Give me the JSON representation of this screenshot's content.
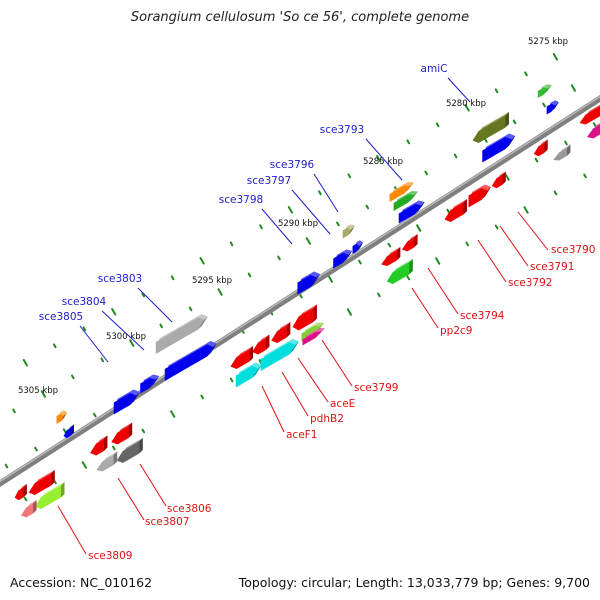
{
  "title": "Sorangium cellulosum 'So ce 56', complete genome",
  "footer": {
    "accession": "Accession: NC_010162",
    "summary": "Topology: circular; Length: 13,033,779 bp; Genes: 9,700"
  },
  "colors": {
    "backbone": "#7f7f7f",
    "upper_label": "#1c1cc8",
    "lower_label": "#dd1111",
    "tick": "#1f8a1f"
  },
  "position_markers": [
    "5275 kbp",
    "5280 kbp",
    "5285 kbp",
    "5290 kbp",
    "5295 kbp",
    "5300 kbp",
    "5305 kbp"
  ],
  "gene_labels_upper": [
    "amiC",
    "sce3793",
    "sce3796",
    "sce3797",
    "sce3798",
    "sce3803",
    "sce3804",
    "sce3805"
  ],
  "gene_labels_lower": [
    "sce3790",
    "sce3791",
    "sce3792",
    "sce3794",
    "pp2c9",
    "sce3799",
    "aceE",
    "pdhB2",
    "aceF1",
    "sce3806",
    "sce3807",
    "sce3809"
  ]
}
